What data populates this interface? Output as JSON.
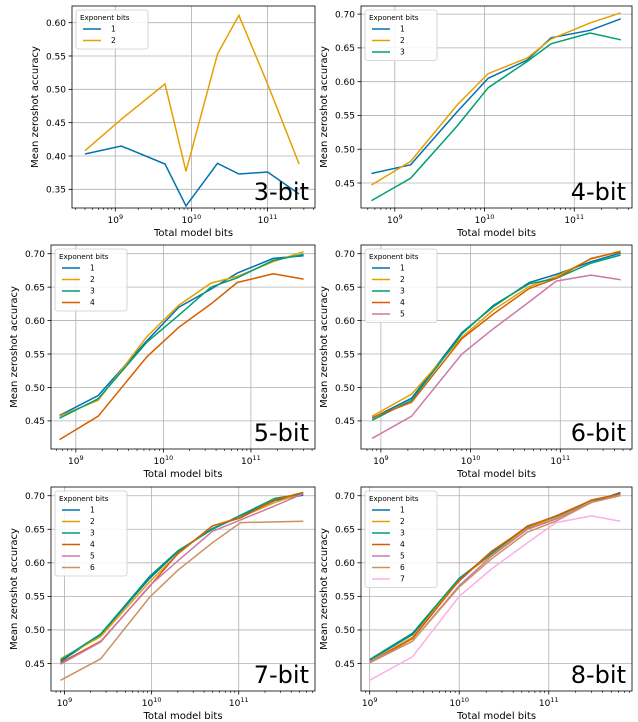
{
  "colors": {
    "1": "#0072b2",
    "2": "#e69f00",
    "3": "#009e73",
    "4": "#d55e00",
    "5": "#cc79a7",
    "6": "#ca9161",
    "7": "#fbafe4"
  },
  "chart_data": [
    {
      "type": "line",
      "big_label": "3-bit",
      "title": "",
      "xlabel": "Total model bits",
      "ylabel": "Mean zeroshot accuracy",
      "xscale": "log",
      "xlim": [
        270000000.0,
        420000000000.0
      ],
      "ylim": [
        0.322,
        0.625
      ],
      "yticks": [
        0.35,
        0.4,
        0.45,
        0.5,
        0.55,
        0.6
      ],
      "ytick_labels": [
        "0.35",
        "0.40",
        "0.45",
        "0.50",
        "0.55",
        "0.60"
      ],
      "xtick_exps": [
        9,
        10,
        11
      ],
      "legend": {
        "title": "Exponent bits",
        "position": "top-left"
      },
      "x": [
        400000000.0,
        1200000000.0,
        4500000000.0,
        8500000000.0,
        22000000000.0,
        42000000000.0,
        100000000000.0,
        260000000000.0
      ],
      "series": [
        {
          "name": "1",
          "values": [
            0.403,
            0.415,
            0.388,
            0.325,
            0.389,
            0.373,
            0.376,
            0.343
          ]
        },
        {
          "name": "2",
          "values": [
            0.408,
            0.455,
            0.508,
            0.377,
            0.553,
            0.611,
            0.508,
            0.388
          ]
        }
      ]
    },
    {
      "type": "line",
      "big_label": "4-bit",
      "title": "",
      "xlabel": "Total model bits",
      "ylabel": "Mean zeroshot accuracy",
      "xscale": "log",
      "xlim": [
        420000000.0,
        440000000000.0
      ],
      "ylim": [
        0.413,
        0.712
      ],
      "yticks": [
        0.45,
        0.5,
        0.55,
        0.6,
        0.65,
        0.7
      ],
      "ytick_labels": [
        "0.45",
        "0.50",
        "0.55",
        "0.60",
        "0.65",
        "0.70"
      ],
      "xtick_exps": [
        9,
        10,
        11
      ],
      "legend": {
        "title": "Exponent bits",
        "position": "top-left"
      },
      "x": [
        550000000.0,
        1500000000.0,
        5000000000.0,
        11000000000.0,
        30000000000.0,
        55000000000.0,
        150000000000.0,
        330000000000.0
      ],
      "series": [
        {
          "name": "1",
          "values": [
            0.464,
            0.477,
            0.556,
            0.605,
            0.632,
            0.665,
            0.676,
            0.693
          ]
        },
        {
          "name": "2",
          "values": [
            0.447,
            0.482,
            0.566,
            0.612,
            0.635,
            0.663,
            0.687,
            0.702
          ]
        },
        {
          "name": "3",
          "values": [
            0.424,
            0.457,
            0.535,
            0.591,
            0.63,
            0.656,
            0.672,
            0.662
          ]
        }
      ]
    },
    {
      "type": "line",
      "big_label": "5-bit",
      "title": "",
      "xlabel": "Total model bits",
      "ylabel": "Mean zeroshot accuracy",
      "xscale": "log",
      "xlim": [
        520000000.0,
        540000000000.0
      ],
      "ylim": [
        0.408,
        0.713
      ],
      "yticks": [
        0.45,
        0.5,
        0.55,
        0.6,
        0.65,
        0.7
      ],
      "ytick_labels": [
        "0.45",
        "0.50",
        "0.55",
        "0.60",
        "0.65",
        "0.70"
      ],
      "xtick_exps": [
        9,
        10,
        11
      ],
      "legend": {
        "title": "Exponent bits",
        "position": "top-left"
      },
      "x": [
        650000000.0,
        1800000000.0,
        6500000000.0,
        15000000000.0,
        35000000000.0,
        70000000000.0,
        180000000000.0,
        400000000000.0
      ],
      "series": [
        {
          "name": "1",
          "values": [
            0.458,
            0.488,
            0.57,
            0.62,
            0.647,
            0.671,
            0.693,
            0.697
          ]
        },
        {
          "name": "2",
          "values": [
            0.457,
            0.481,
            0.576,
            0.623,
            0.656,
            0.666,
            0.688,
            0.703
          ]
        },
        {
          "name": "3",
          "values": [
            0.454,
            0.483,
            0.568,
            0.608,
            0.65,
            0.664,
            0.69,
            0.699
          ]
        },
        {
          "name": "4",
          "values": [
            0.422,
            0.457,
            0.546,
            0.59,
            0.625,
            0.657,
            0.67,
            0.662
          ]
        }
      ]
    },
    {
      "type": "line",
      "big_label": "6-bit",
      "title": "",
      "xlabel": "Total model bits",
      "ylabel": "Mean zeroshot accuracy",
      "xscale": "log",
      "xlim": [
        600000000.0,
        630000000000.0
      ],
      "ylim": [
        0.408,
        0.713
      ],
      "yticks": [
        0.45,
        0.5,
        0.55,
        0.6,
        0.65,
        0.7
      ],
      "ytick_labels": [
        "0.45",
        "0.50",
        "0.55",
        "0.60",
        "0.65",
        "0.70"
      ],
      "xtick_exps": [
        9,
        10,
        11
      ],
      "legend": {
        "title": "Exponent bits",
        "position": "top-left"
      },
      "x": [
        800000000.0,
        2200000000.0,
        8000000000.0,
        18000000000.0,
        45000000000.0,
        90000000000.0,
        220000000000.0,
        470000000000.0
      ],
      "series": [
        {
          "name": "1",
          "values": [
            0.454,
            0.484,
            0.582,
            0.621,
            0.657,
            0.669,
            0.688,
            0.701
          ]
        },
        {
          "name": "2",
          "values": [
            0.457,
            0.49,
            0.575,
            0.616,
            0.651,
            0.666,
            0.692,
            0.704
          ]
        },
        {
          "name": "3",
          "values": [
            0.451,
            0.481,
            0.58,
            0.623,
            0.655,
            0.663,
            0.686,
            0.698
          ]
        },
        {
          "name": "4",
          "values": [
            0.455,
            0.478,
            0.573,
            0.61,
            0.648,
            0.663,
            0.693,
            0.703
          ]
        },
        {
          "name": "5",
          "values": [
            0.424,
            0.457,
            0.55,
            0.588,
            0.628,
            0.659,
            0.668,
            0.661
          ]
        }
      ]
    },
    {
      "type": "line",
      "big_label": "7-bit",
      "title": "",
      "xlabel": "Total model bits",
      "ylabel": "Mean zeroshot accuracy",
      "xscale": "log",
      "xlim": [
        700000000.0,
        750000000000.0
      ],
      "ylim": [
        0.409,
        0.713
      ],
      "yticks": [
        0.45,
        0.5,
        0.55,
        0.6,
        0.65,
        0.7
      ],
      "ytick_labels": [
        "0.45",
        "0.50",
        "0.55",
        "0.60",
        "0.65",
        "0.70"
      ],
      "xtick_exps": [
        9,
        10,
        11
      ],
      "legend": {
        "title": "Exponent bits",
        "position": "top-left"
      },
      "x": [
        900000000.0,
        2600000000.0,
        9500000000.0,
        20000000000.0,
        50000000000.0,
        105000000000.0,
        260000000000.0,
        550000000000.0
      ],
      "series": [
        {
          "name": "1",
          "values": [
            0.453,
            0.493,
            0.577,
            0.617,
            0.651,
            0.669,
            0.693,
            0.701
          ]
        },
        {
          "name": "2",
          "values": [
            0.457,
            0.49,
            0.572,
            0.613,
            0.655,
            0.668,
            0.69,
            0.704
          ]
        },
        {
          "name": "3",
          "values": [
            0.455,
            0.494,
            0.58,
            0.618,
            0.65,
            0.671,
            0.696,
            0.703
          ]
        },
        {
          "name": "4",
          "values": [
            0.451,
            0.483,
            0.565,
            0.614,
            0.655,
            0.667,
            0.694,
            0.705
          ]
        },
        {
          "name": "5",
          "values": [
            0.449,
            0.482,
            0.566,
            0.603,
            0.647,
            0.664,
            0.685,
            0.703
          ]
        },
        {
          "name": "6",
          "values": [
            0.425,
            0.457,
            0.549,
            0.589,
            0.63,
            0.66,
            0.661,
            0.662
          ]
        }
      ]
    },
    {
      "type": "line",
      "big_label": "8-bit",
      "title": "",
      "xlabel": "Total model bits",
      "ylabel": "Mean zeroshot accuracy",
      "xscale": "log",
      "xlim": [
        800000000.0,
        850000000000.0
      ],
      "ylim": [
        0.409,
        0.713
      ],
      "yticks": [
        0.45,
        0.5,
        0.55,
        0.6,
        0.65,
        0.7
      ],
      "ytick_labels": [
        "0.45",
        "0.50",
        "0.55",
        "0.60",
        "0.65",
        "0.70"
      ],
      "xtick_exps": [
        9,
        10,
        11
      ],
      "legend": {
        "title": "Exponent bits",
        "position": "top-left"
      },
      "x": [
        1000000000.0,
        3000000000.0,
        10000000000.0,
        23000000000.0,
        58000000000.0,
        120000000000.0,
        300000000000.0,
        630000000000.0
      ],
      "series": [
        {
          "name": "1",
          "values": [
            0.455,
            0.493,
            0.573,
            0.617,
            0.652,
            0.666,
            0.69,
            0.705
          ]
        },
        {
          "name": "2",
          "values": [
            0.453,
            0.489,
            0.576,
            0.612,
            0.653,
            0.666,
            0.694,
            0.702
          ]
        },
        {
          "name": "3",
          "values": [
            0.456,
            0.495,
            0.577,
            0.614,
            0.655,
            0.669,
            0.693,
            0.703
          ]
        },
        {
          "name": "4",
          "values": [
            0.452,
            0.487,
            0.574,
            0.617,
            0.654,
            0.67,
            0.693,
            0.703
          ]
        },
        {
          "name": "5",
          "values": [
            0.453,
            0.483,
            0.566,
            0.61,
            0.65,
            0.665,
            0.69,
            0.701
          ]
        },
        {
          "name": "6",
          "values": [
            0.451,
            0.483,
            0.564,
            0.606,
            0.646,
            0.662,
            0.69,
            0.7
          ]
        },
        {
          "name": "7",
          "values": [
            0.425,
            0.46,
            0.55,
            0.591,
            0.63,
            0.66,
            0.67,
            0.662
          ]
        }
      ]
    }
  ]
}
